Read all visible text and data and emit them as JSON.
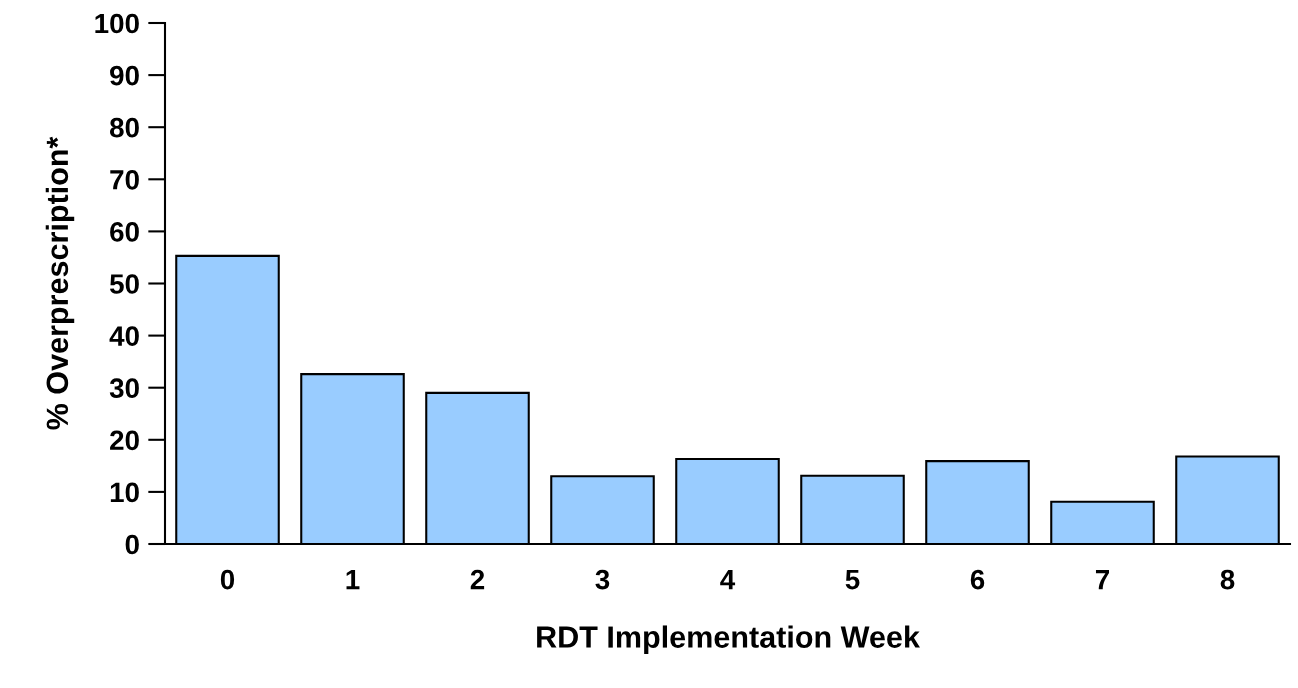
{
  "chart_data": {
    "type": "bar",
    "xlabel": "RDT Implementation Week",
    "ylabel": "% Overprescription*",
    "categories": [
      "0",
      "1",
      "2",
      "3",
      "4",
      "5",
      "6",
      "7",
      "8"
    ],
    "values": [
      55.3,
      32.6,
      29,
      13,
      16.3,
      13.1,
      15.9,
      8.1,
      16.8
    ],
    "color": "#99ccff",
    "ylim": [
      0,
      100
    ],
    "yticks": [
      0,
      10,
      20,
      30,
      40,
      50,
      60,
      70,
      80,
      90,
      100
    ],
    "grid": false,
    "legend": false
  }
}
